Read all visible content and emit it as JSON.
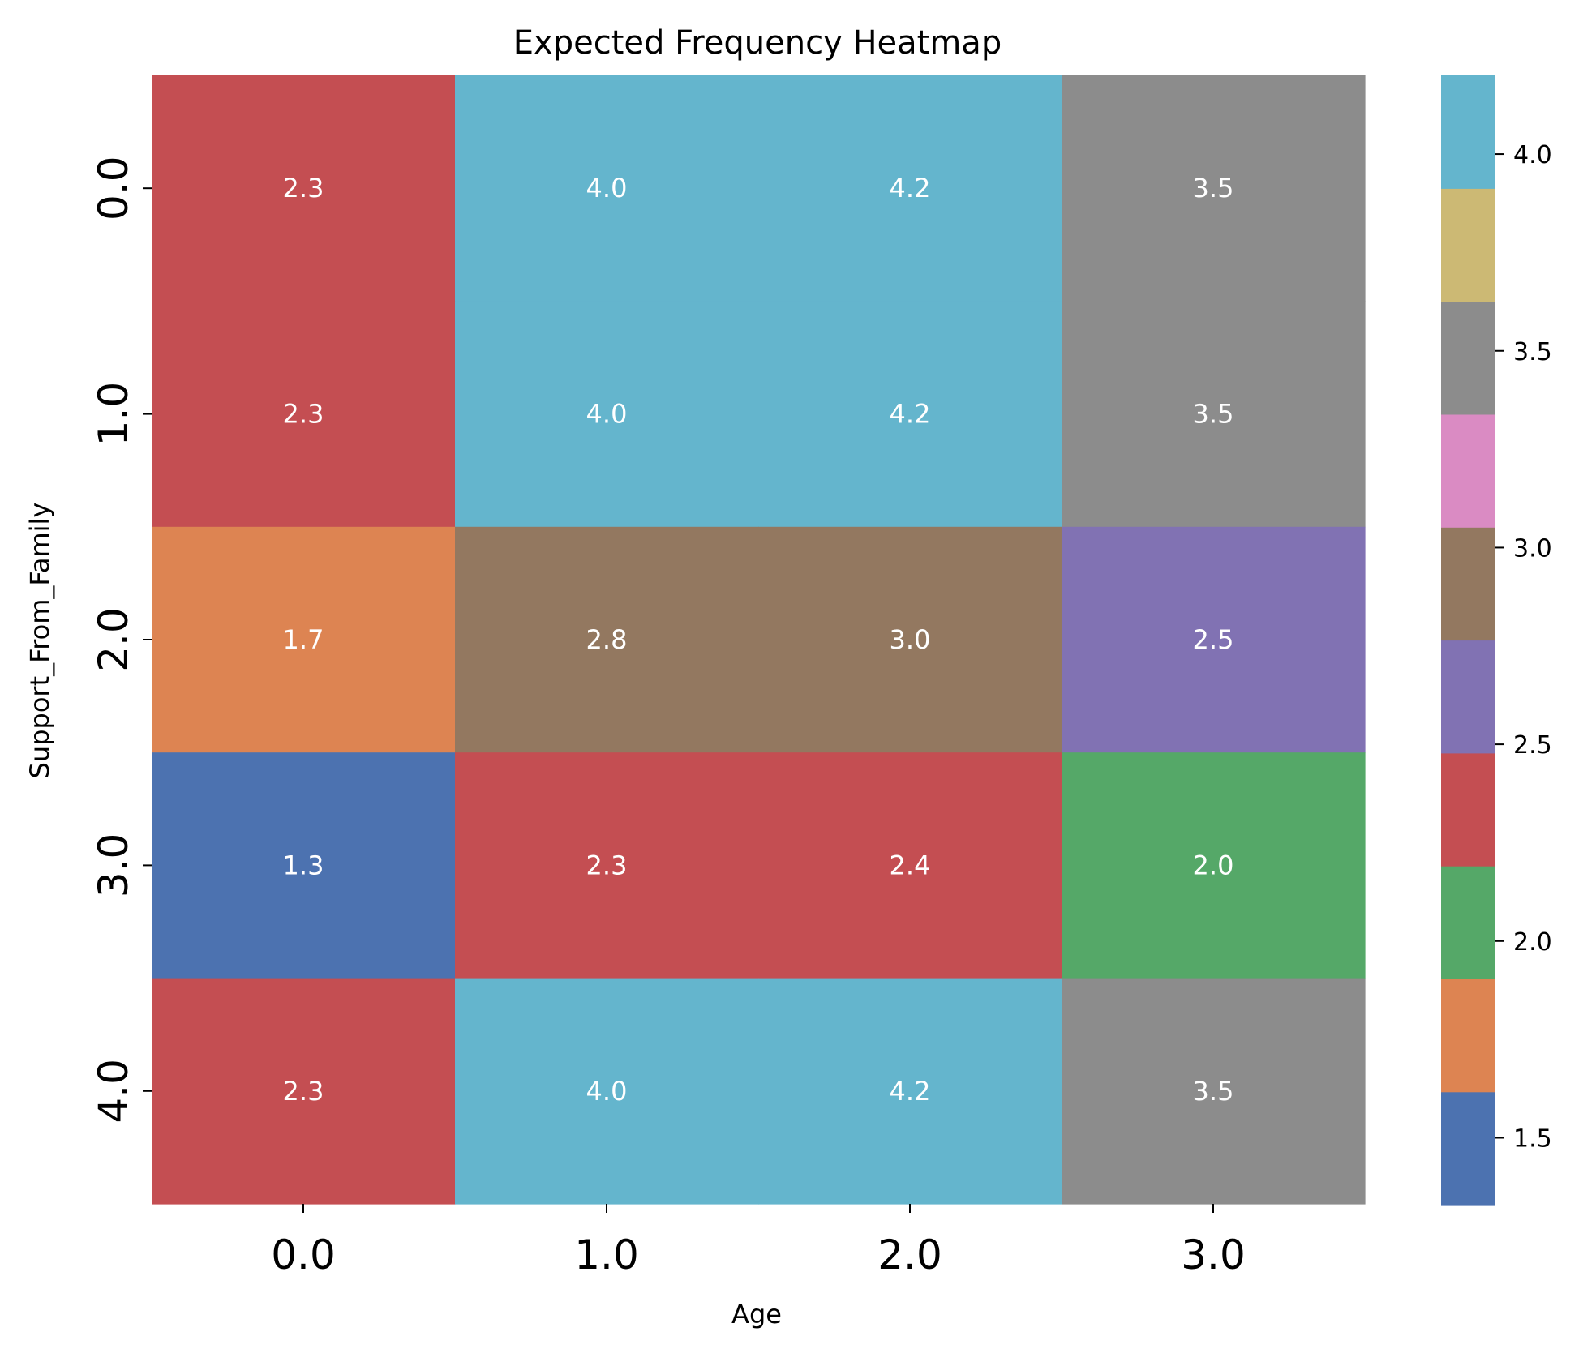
{
  "chart_data": {
    "type": "heatmap",
    "title": "Expected Frequency Heatmap",
    "xlabel": "Age",
    "ylabel": "Support_From_Family",
    "x_categories": [
      "0.0",
      "1.0",
      "2.0",
      "3.0"
    ],
    "y_categories": [
      "0.0",
      "1.0",
      "2.0",
      "3.0",
      "4.0"
    ],
    "values": [
      [
        2.3,
        4.0,
        4.2,
        3.5
      ],
      [
        2.3,
        4.0,
        4.2,
        3.5
      ],
      [
        1.7,
        2.8,
        3.0,
        2.5
      ],
      [
        1.3,
        2.3,
        2.4,
        2.0
      ],
      [
        2.3,
        4.0,
        4.2,
        3.5
      ]
    ],
    "cell_labels": [
      [
        "2.3",
        "4.0",
        "4.2",
        "3.5"
      ],
      [
        "2.3",
        "4.0",
        "4.2",
        "3.5"
      ],
      [
        "1.7",
        "2.8",
        "3.0",
        "2.5"
      ],
      [
        "1.3",
        "2.3",
        "2.4",
        "2.0"
      ],
      [
        "2.3",
        "4.0",
        "4.2",
        "3.5"
      ]
    ],
    "colorbar": {
      "vmin": 1.33,
      "vmax": 4.2,
      "ticks": [
        1.5,
        2.0,
        2.5,
        3.0,
        3.5,
        4.0
      ],
      "tick_labels": [
        "1.5",
        "2.0",
        "2.5",
        "3.0",
        "3.5",
        "4.0"
      ],
      "colors": [
        "#4c72b0",
        "#dd8452",
        "#55a868",
        "#c44e52",
        "#8172b3",
        "#937860",
        "#da8bc3",
        "#8c8c8c",
        "#ccb974",
        "#64b5cd"
      ]
    }
  }
}
